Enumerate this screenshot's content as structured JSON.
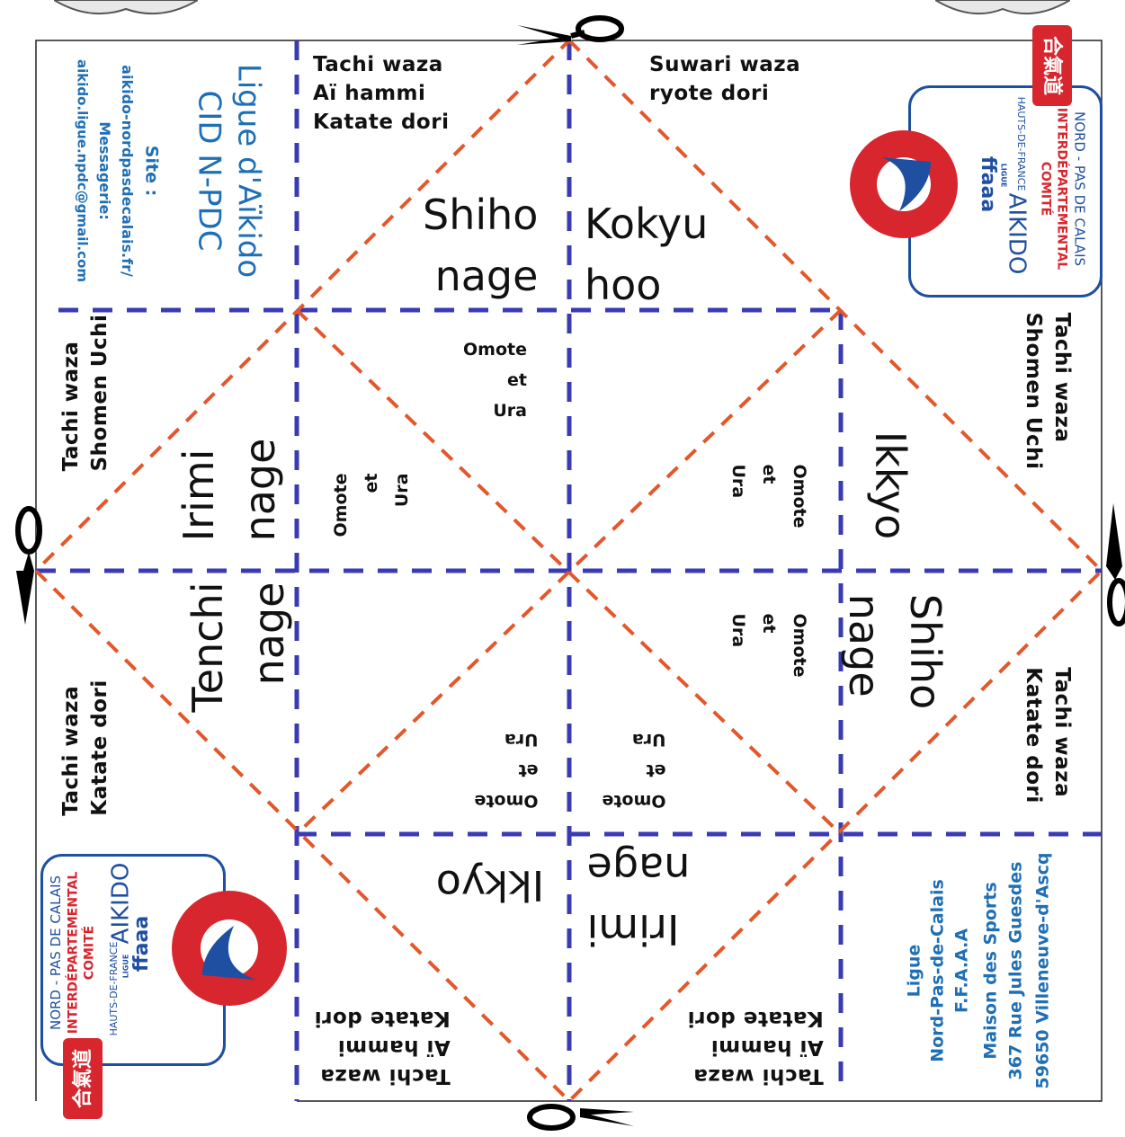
{
  "sheet": {
    "colors": {
      "fold_blue": "#3a3ab5",
      "cut_orange": "#e3572b",
      "accent_blue": "#1f6fb5",
      "logo_red": "#d8262e",
      "logo_navy": "#1f4fa0"
    },
    "icons": [
      "scissors-icon",
      "comite-logo",
      "ffaaa-logo",
      "aikido-kanji-seal"
    ]
  },
  "info_top_left": {
    "title_line1": "Ligue d'Aïkido",
    "title_line2": "CID N-PDC",
    "site_label": "Site :",
    "site_url": "aikido-nordpasdecalais.fr/",
    "mail_label": "Messagerie:",
    "mail_address": "aikido.ligue.npdc@gmail.com"
  },
  "info_bottom_right": {
    "line1": "Ligue",
    "line2": "Nord-Pas-de-Calais",
    "line3": "F.F.A.A.A",
    "line4": "Maison des Sports",
    "line5": "367 Rue Jules Guesdes",
    "line6": "59650 Villeneuve-d'Ascq"
  },
  "logo": {
    "aikido": "AIKIDO",
    "ligue": "LIGUE",
    "hauts": "HAUTS-DE-FRANCE",
    "comite": "COMITÉ",
    "inter": "INTERDÉPARTEMENTAL",
    "nord": "NORD - PAS DE CALAIS",
    "ffaaa": "ffaaa",
    "kanji": "合氣道"
  },
  "attacks": {
    "top_left": "Tachi waza\nAï hammi\nKatate dori",
    "top_right": "Suwari waza\nryote dori",
    "right_top": "Tachi waza\nShomen Uchi",
    "right_bottom": "Tachi waza\nKatate dori",
    "bottom_right": "Tachi waza\nAï hammi\nKatate dori",
    "bottom_left": "Tachi waza\nAï hammi\nKatate dori",
    "left_bottom": "Tachi waza\nKatate dori",
    "left_top": "Tachi waza\nShomen Uchi"
  },
  "techniques": {
    "top_left": "Shiho\nnage",
    "top_right": "Kokyu\nhoo",
    "right_top": "Ikkyo",
    "right_bottom": "Shiho\nnage",
    "bottom_right": "Irimi\nnage",
    "bottom_left": "Ikkyo",
    "left_bottom": "Tenchi\nnage",
    "left_top": "Irimi\nnage"
  },
  "variants": {
    "top": "Omote\net\nUra",
    "right_top": "Omote\net\nUra",
    "right_bottom": "Omote\net\nUra",
    "bottom_right": "Omote\net\nUra",
    "bottom_left": "Omote\net\nUra",
    "left_top": "Omote\net\nUra"
  }
}
